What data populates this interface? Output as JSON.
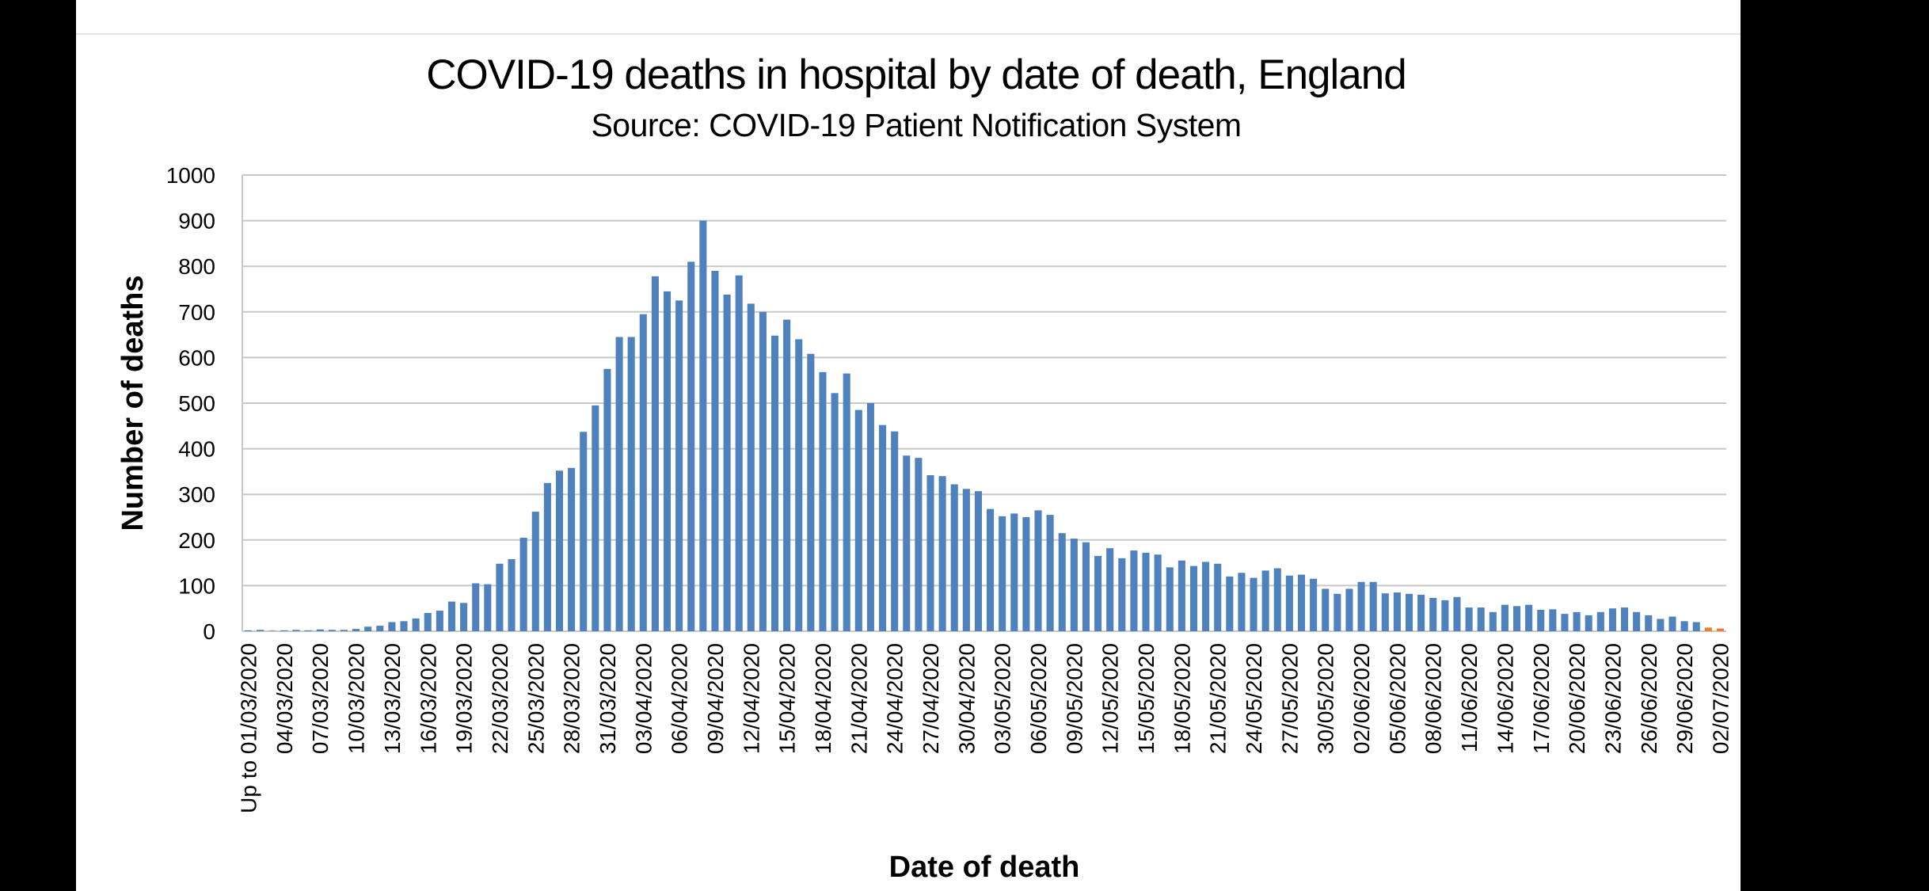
{
  "chart_data": {
    "type": "bar",
    "title": "COVID-19 deaths in hospital by date of death, England",
    "subtitle": "Source: COVID-19 Patient Notification System",
    "y_label": "Number of deaths",
    "x_label": "Date of death",
    "categories": [
      "Up to 01/03/2020",
      null,
      null,
      "04/03/2020",
      null,
      null,
      "07/03/2020",
      null,
      null,
      "10/03/2020",
      null,
      null,
      "13/03/2020",
      null,
      null,
      "16/03/2020",
      null,
      null,
      "19/03/2020",
      null,
      null,
      "22/03/2020",
      null,
      null,
      "25/03/2020",
      null,
      null,
      "28/03/2020",
      null,
      null,
      "31/03/2020",
      null,
      null,
      "03/04/2020",
      null,
      null,
      "06/04/2020",
      null,
      null,
      "09/04/2020",
      null,
      null,
      "12/04/2020",
      null,
      null,
      "15/04/2020",
      null,
      null,
      "18/04/2020",
      null,
      null,
      "21/04/2020",
      null,
      null,
      "24/04/2020",
      null,
      null,
      "27/04/2020",
      null,
      null,
      "30/04/2020",
      null,
      null,
      "03/05/2020",
      null,
      null,
      "06/05/2020",
      null,
      null,
      "09/05/2020",
      null,
      null,
      "12/05/2020",
      null,
      null,
      "15/05/2020",
      null,
      null,
      "18/05/2020",
      null,
      null,
      "21/05/2020",
      null,
      null,
      "24/05/2020",
      null,
      null,
      "27/05/2020",
      null,
      null,
      "30/05/2020",
      null,
      null,
      "02/06/2020",
      null,
      null,
      "05/06/2020",
      null,
      null,
      "08/06/2020",
      null,
      null,
      "11/06/2020",
      null,
      null,
      "14/06/2020",
      null,
      null,
      "17/06/2020",
      null,
      null,
      "20/06/2020",
      null,
      null,
      "23/06/2020",
      null,
      null,
      "26/06/2020",
      null,
      null,
      "29/06/2020",
      null,
      null,
      "02/07/2020"
    ],
    "values": [
      2,
      3,
      1,
      2,
      3,
      2,
      4,
      3,
      3,
      5,
      10,
      12,
      20,
      22,
      28,
      40,
      45,
      65,
      62,
      105,
      103,
      148,
      158,
      205,
      262,
      325,
      352,
      358,
      437,
      495,
      575,
      645,
      645,
      695,
      778,
      745,
      725,
      810,
      900,
      790,
      738,
      780,
      718,
      700,
      648,
      683,
      640,
      608,
      568,
      522,
      565,
      485,
      500,
      452,
      438,
      385,
      380,
      342,
      340,
      322,
      312,
      307,
      268,
      252,
      258,
      250,
      265,
      255,
      215,
      203,
      195,
      165,
      182,
      160,
      177,
      172,
      168,
      140,
      155,
      143,
      152,
      148,
      120,
      128,
      117,
      133,
      138,
      122,
      124,
      115,
      93,
      82,
      93,
      108,
      108,
      83,
      85,
      82,
      80,
      73,
      68,
      75,
      52,
      52,
      42,
      58,
      55,
      58,
      47,
      48,
      38,
      42,
      35,
      42,
      50,
      52,
      42,
      35,
      27,
      32,
      22,
      20,
      8,
      6
    ],
    "colors": [
      "#4f81bd",
      "#4f81bd",
      "#4f81bd",
      "#4f81bd",
      "#4f81bd",
      "#4f81bd",
      "#4f81bd",
      "#4f81bd",
      "#4f81bd",
      "#4f81bd",
      "#4f81bd",
      "#4f81bd",
      "#4f81bd",
      "#4f81bd",
      "#4f81bd",
      "#4f81bd",
      "#4f81bd",
      "#4f81bd",
      "#4f81bd",
      "#4f81bd",
      "#4f81bd",
      "#4f81bd",
      "#4f81bd",
      "#4f81bd",
      "#4f81bd",
      "#4f81bd",
      "#4f81bd",
      "#4f81bd",
      "#4f81bd",
      "#4f81bd",
      "#4f81bd",
      "#4f81bd",
      "#4f81bd",
      "#4f81bd",
      "#4f81bd",
      "#4f81bd",
      "#4f81bd",
      "#4f81bd",
      "#4f81bd",
      "#4f81bd",
      "#4f81bd",
      "#4f81bd",
      "#4f81bd",
      "#4f81bd",
      "#4f81bd",
      "#4f81bd",
      "#4f81bd",
      "#4f81bd",
      "#4f81bd",
      "#4f81bd",
      "#4f81bd",
      "#4f81bd",
      "#4f81bd",
      "#4f81bd",
      "#4f81bd",
      "#4f81bd",
      "#4f81bd",
      "#4f81bd",
      "#4f81bd",
      "#4f81bd",
      "#4f81bd",
      "#4f81bd",
      "#4f81bd",
      "#4f81bd",
      "#4f81bd",
      "#4f81bd",
      "#4f81bd",
      "#4f81bd",
      "#4f81bd",
      "#4f81bd",
      "#4f81bd",
      "#4f81bd",
      "#4f81bd",
      "#4f81bd",
      "#4f81bd",
      "#4f81bd",
      "#4f81bd",
      "#4f81bd",
      "#4f81bd",
      "#4f81bd",
      "#4f81bd",
      "#4f81bd",
      "#4f81bd",
      "#4f81bd",
      "#4f81bd",
      "#4f81bd",
      "#4f81bd",
      "#4f81bd",
      "#4f81bd",
      "#4f81bd",
      "#4f81bd",
      "#4f81bd",
      "#4f81bd",
      "#4f81bd",
      "#4f81bd",
      "#4f81bd",
      "#4f81bd",
      "#4f81bd",
      "#4f81bd",
      "#4f81bd",
      "#4f81bd",
      "#4f81bd",
      "#4f81bd",
      "#4f81bd",
      "#4f81bd",
      "#4f81bd",
      "#4f81bd",
      "#4f81bd",
      "#4f81bd",
      "#4f81bd",
      "#4f81bd",
      "#4f81bd",
      "#4f81bd",
      "#4f81bd",
      "#4f81bd",
      "#4f81bd",
      "#4f81bd",
      "#4f81bd",
      "#4f81bd",
      "#4f81bd",
      "#4f81bd",
      "#4f81bd",
      "#ed7d31",
      "#ed7d31"
    ],
    "ylim": [
      0,
      1000
    ],
    "yticks": [
      0,
      100,
      200,
      300,
      400,
      500,
      600,
      700,
      800,
      900,
      1000
    ],
    "grid": true
  }
}
